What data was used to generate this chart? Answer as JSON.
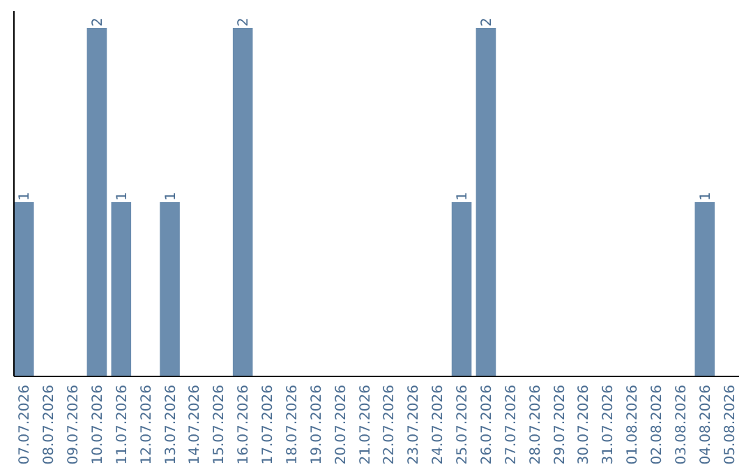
{
  "chart_data": {
    "type": "bar",
    "categories": [
      "07.07.2026",
      "08.07.2026",
      "09.07.2026",
      "10.07.2026",
      "11.07.2026",
      "12.07.2026",
      "13.07.2026",
      "14.07.2026",
      "15.07.2026",
      "16.07.2026",
      "17.07.2026",
      "18.07.2026",
      "19.07.2026",
      "20.07.2026",
      "21.07.2026",
      "22.07.2026",
      "23.07.2026",
      "24.07.2026",
      "25.07.2026",
      "26.07.2026",
      "27.07.2026",
      "28.07.2026",
      "29.07.2026",
      "30.07.2026",
      "31.07.2026",
      "01.08.2026",
      "02.08.2026",
      "03.08.2026",
      "04.08.2026",
      "05.08.2026"
    ],
    "values": [
      1,
      0,
      0,
      2,
      1,
      0,
      1,
      0,
      0,
      2,
      0,
      0,
      0,
      0,
      0,
      0,
      0,
      0,
      1,
      2,
      0,
      0,
      0,
      0,
      0,
      0,
      0,
      0,
      1,
      0
    ],
    "value_labels": [
      "1",
      null,
      null,
      "2",
      "1",
      null,
      "1",
      null,
      null,
      "2",
      null,
      null,
      null,
      null,
      null,
      null,
      null,
      null,
      "1",
      "2",
      null,
      null,
      null,
      null,
      null,
      null,
      null,
      null,
      "1",
      null
    ],
    "color": "#6b8daf",
    "ylim": [
      0,
      2
    ]
  }
}
